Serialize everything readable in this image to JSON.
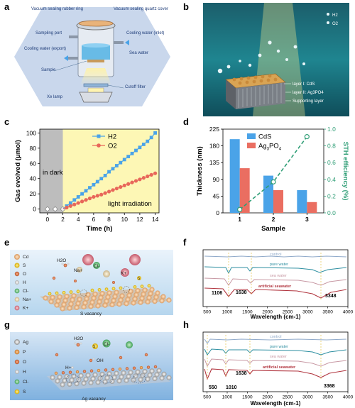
{
  "panels": {
    "a": {
      "label": "a",
      "parts": [
        "Vacuum sealing rubber ring",
        "Vacuum sealing quartz cover",
        "Sampling port",
        "Cooling water (inlet)",
        "Cooling water (export)",
        "Sea water",
        "Sample",
        "Xe lamp",
        "Cutoff filter"
      ],
      "colors": {
        "bg": "#c9d7ec",
        "water": "#5ab6e4"
      }
    },
    "b": {
      "label": "b",
      "gases": [
        "H2",
        "O2"
      ],
      "layers": [
        "layer I: CdS",
        "layer II: Ag3PO4",
        "Supporting layer"
      ],
      "colors": {
        "sea": "#1f7c86"
      }
    },
    "c": {
      "label": "c",
      "dark_label": "in dark",
      "light_label": "light irradiation"
    },
    "d": {
      "label": "d"
    },
    "e": {
      "label": "e",
      "legend": [
        "Cd",
        "S",
        "O",
        "H",
        "Cl-",
        "Na+",
        "K+"
      ],
      "ions": [
        "H2O",
        "Na+",
        "Cl-",
        "K+",
        "S"
      ],
      "vacancy": "S vacancy"
    },
    "f": {
      "label": "f",
      "traces": [
        "control",
        "pure water",
        "sea water",
        "artificial seawater"
      ],
      "peaks": [
        "1106",
        "1638",
        "3348"
      ],
      "xlabel": "Wavelength (cm-1)",
      "xticks": [
        "500",
        "1000",
        "1500",
        "2000",
        "2500",
        "3000",
        "3500",
        "4000"
      ]
    },
    "g": {
      "label": "g",
      "legend": [
        "Ag",
        "P",
        "O",
        "H",
        "Cl-",
        "S"
      ],
      "ions": [
        "H2O",
        "S",
        "Cl-",
        "OH",
        "H+"
      ],
      "vacancy": "Ag vacancy"
    },
    "h": {
      "label": "h",
      "traces": [
        "control",
        "pure water",
        "sea water",
        "artificial seawater"
      ],
      "peaks": [
        "550",
        "1010",
        "1638",
        "3368"
      ],
      "xlabel": "Wavelength (cm-1)",
      "xticks": [
        "500",
        "1000",
        "1500",
        "2000",
        "2500",
        "3000",
        "3500",
        "4000"
      ]
    }
  },
  "chart_data": [
    {
      "id": "c",
      "type": "line",
      "xlabel": "Time (h)",
      "ylabel": "Gas evolved (μmol)",
      "xlim": [
        -1,
        14.5
      ],
      "ylim": [
        -5,
        105
      ],
      "xticks": [
        0,
        2,
        4,
        6,
        8,
        10,
        12,
        14
      ],
      "yticks": [
        0,
        20,
        40,
        60,
        80,
        100
      ],
      "x_labels": [
        "0",
        "2",
        "4",
        "6",
        "8",
        "10",
        "12",
        "14"
      ],
      "y_labels": [
        "0",
        "20",
        "40",
        "60",
        "80",
        "100"
      ],
      "dark_region": [
        -1,
        2
      ],
      "light_region": [
        2,
        14.5
      ],
      "x": [
        0,
        1,
        2,
        2.5,
        3,
        3.5,
        4,
        4.5,
        5,
        5.5,
        6,
        6.5,
        7,
        7.5,
        8,
        8.5,
        9,
        9.5,
        10,
        10.5,
        11,
        11.5,
        12,
        12.5,
        13,
        13.5,
        14
      ],
      "series": [
        {
          "name": "H2",
          "color": "#4aa3e8",
          "values": [
            0,
            0,
            0,
            4,
            8,
            12,
            16,
            20,
            24,
            28,
            32,
            36,
            40,
            44,
            49,
            53,
            57,
            61,
            65,
            69,
            73,
            77,
            81,
            85,
            89,
            94,
            100
          ]
        },
        {
          "name": "O2",
          "color": "#e8675a",
          "values": [
            0,
            0,
            0,
            2,
            4,
            6,
            8,
            10,
            12,
            14,
            16,
            17.5,
            19,
            21,
            23,
            25,
            27,
            29,
            31,
            33,
            35,
            37,
            39,
            41,
            43,
            45,
            47
          ]
        }
      ],
      "dark_values": [
        0,
        0,
        0
      ]
    },
    {
      "id": "d",
      "type": "bar",
      "xlabel": "Sample",
      "ylabel": "Thickness (nm)",
      "y2label": "STH efficiency (%)",
      "categories": [
        "1",
        "2",
        "3"
      ],
      "ylim": [
        0,
        225
      ],
      "yticks": [
        0,
        45,
        90,
        135,
        180,
        225
      ],
      "y_labels": [
        "0",
        "45",
        "90",
        "135",
        "180",
        "225"
      ],
      "y2lim": [
        0,
        1.0
      ],
      "y2ticks": [
        0,
        0.2,
        0.4,
        0.6,
        0.8,
        1.0
      ],
      "y2_labels": [
        "0.0",
        "0.2",
        "0.4",
        "0.6",
        "0.8",
        "1.0"
      ],
      "series": [
        {
          "name": "CdS",
          "color": "#4aa3e8",
          "values": [
            198,
            100,
            61
          ]
        },
        {
          "name": "Ag3PO4",
          "color": "#ea6e61",
          "values": [
            120,
            61,
            29
          ]
        }
      ],
      "efficiency": {
        "color": "#2f9e76",
        "values": [
          0.04,
          0.37,
          0.91
        ]
      }
    }
  ]
}
